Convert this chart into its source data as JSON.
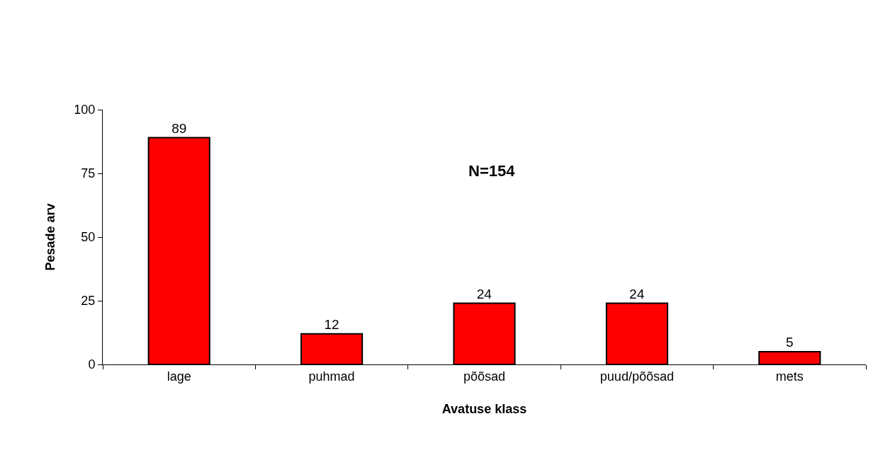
{
  "chart_data": {
    "type": "bar",
    "xlabel": "Avatuse klass",
    "ylabel": "Pesade arv",
    "categories": [
      "lage",
      "puhmad",
      "põõsad",
      "puud/põõsad",
      "mets"
    ],
    "values": [
      89,
      12,
      24,
      24,
      5
    ],
    "color": "#ff0000",
    "ylim": [
      0,
      100
    ],
    "yticks": [
      0,
      25,
      50,
      75,
      100
    ],
    "legend": false,
    "data_labels": true,
    "annotations": [
      "N=154"
    ]
  }
}
